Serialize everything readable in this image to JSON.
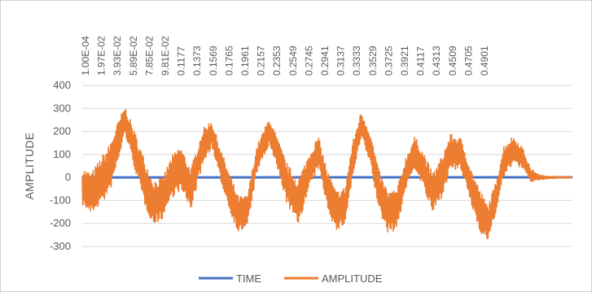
{
  "chart_data": {
    "type": "line",
    "title": "",
    "xlabel": "",
    "ylabel": "AMPLITUDE",
    "ylim": [
      -300,
      400
    ],
    "yticks": [
      -300,
      -200,
      -100,
      0,
      100,
      200,
      300,
      400
    ],
    "grid": "horizontal",
    "legend_position": "bottom",
    "categories": [
      "1.00E-04",
      "1.97E-02",
      "3.93E-02",
      "5.89E-02",
      "7.85E-02",
      "9.81E-02",
      "0.1177",
      "0.1373",
      "0.1569",
      "0.1765",
      "0.1961",
      "0.2157",
      "0.2353",
      "0.2549",
      "0.2745",
      "0.2941",
      "0.3137",
      "0.3333",
      "0.3529",
      "0.3725",
      "0.3921",
      "0.4117",
      "0.4313",
      "0.4509",
      "0.4705",
      "0.4901"
    ],
    "x_range": [
      0.0001,
      0.5499
    ],
    "series": [
      {
        "name": "TIME",
        "color": "#4472C4",
        "x": [
          0.0001,
          0.5499
        ],
        "values": [
          0.0001,
          0.5499
        ]
      },
      {
        "name": "AMPLITUDE",
        "color": "#ED7D31",
        "x": [
          0,
          0.01,
          0.02,
          0.03,
          0.04,
          0.048,
          0.058,
          0.07,
          0.08,
          0.09,
          0.1,
          0.11,
          0.122,
          0.135,
          0.145,
          0.155,
          0.165,
          0.175,
          0.185,
          0.196,
          0.21,
          0.22,
          0.23,
          0.242,
          0.255,
          0.265,
          0.275,
          0.285,
          0.295,
          0.303,
          0.313,
          0.323,
          0.333,
          0.343,
          0.353,
          0.363,
          0.373,
          0.383,
          0.393,
          0.403,
          0.413,
          0.425,
          0.437,
          0.447,
          0.455,
          0.463,
          0.473,
          0.483,
          0.493,
          0.503,
          0.513,
          0.525,
          0.549
        ],
        "values": [
          -40,
          -70,
          -20,
          30,
          150,
          250,
          130,
          -20,
          -110,
          -90,
          0,
          40,
          -50,
          130,
          190,
          60,
          -60,
          -160,
          -150,
          80,
          200,
          90,
          -30,
          -110,
          30,
          110,
          -50,
          -150,
          -120,
          70,
          230,
          130,
          -60,
          -150,
          -140,
          20,
          110,
          30,
          -70,
          0,
          110,
          100,
          -50,
          -150,
          -200,
          -100,
          70,
          120,
          90,
          10,
          0,
          0,
          0
        ],
        "envelope": [
          80,
          90,
          100,
          110,
          90,
          60,
          80,
          100,
          100,
          90,
          90,
          100,
          90,
          80,
          60,
          70,
          80,
          80,
          70,
          60,
          60,
          70,
          90,
          100,
          80,
          70,
          80,
          90,
          80,
          80,
          60,
          70,
          90,
          90,
          90,
          70,
          70,
          80,
          90,
          90,
          80,
          70,
          80,
          90,
          80,
          70,
          70,
          60,
          50,
          30,
          10,
          5,
          2
        ]
      }
    ]
  }
}
